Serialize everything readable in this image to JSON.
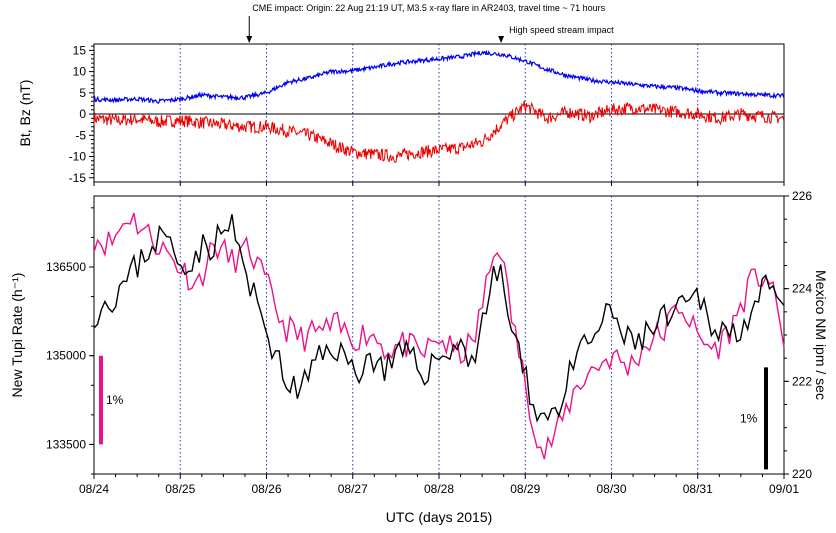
{
  "chart_data": [
    {
      "type": "line",
      "panel": "top",
      "title": "",
      "ylabel": "Bt, Bz (nT)",
      "ylim": [
        -16,
        16.5
      ],
      "yticks": [
        15,
        10,
        5,
        0,
        -5,
        -10,
        -15
      ],
      "ytick_labels": [
        "15",
        "10",
        "5",
        "0",
        "-5",
        "-10",
        "-15"
      ],
      "zero_line": true,
      "day_start": "08/24",
      "xlim_days": [
        0,
        8
      ],
      "colors": {
        "bt": "#0000ee",
        "bz": "#ee0000",
        "grid": "#2233cc"
      },
      "series": [
        {
          "name": "Bt",
          "color": "#0000ee",
          "x": [
            0,
            0.25,
            0.5,
            0.75,
            1.0,
            1.25,
            1.5,
            1.75,
            2.0,
            2.25,
            2.5,
            2.75,
            3.0,
            3.25,
            3.5,
            3.75,
            4.0,
            4.25,
            4.5,
            4.75,
            5.0,
            5.25,
            5.5,
            5.75,
            6.0,
            6.25,
            6.5,
            6.75,
            7.0,
            7.25,
            7.5,
            7.75,
            8.0
          ],
          "values": [
            3.5,
            3.3,
            3.6,
            3.0,
            3.5,
            4.5,
            4.0,
            3.9,
            5.0,
            7.5,
            8.5,
            10.0,
            10.2,
            11.0,
            12.0,
            12.5,
            13.0,
            13.5,
            14.5,
            14.0,
            12.5,
            10.5,
            9.0,
            8.0,
            7.5,
            7.0,
            6.5,
            6.2,
            5.5,
            5.0,
            4.8,
            4.5,
            4.3
          ]
        },
        {
          "name": "Bz",
          "color": "#ee0000",
          "x": [
            0,
            0.25,
            0.5,
            0.75,
            1.0,
            1.25,
            1.5,
            1.75,
            2.0,
            2.25,
            2.5,
            2.75,
            3.0,
            3.25,
            3.5,
            3.75,
            4.0,
            4.25,
            4.5,
            4.75,
            5.0,
            5.25,
            5.5,
            5.75,
            6.0,
            6.25,
            6.5,
            6.75,
            7.0,
            7.25,
            7.5,
            7.75,
            8.0
          ],
          "values": [
            -1.0,
            -1.5,
            -1.2,
            -1.8,
            -1.5,
            -2.0,
            -2.5,
            -3.0,
            -3.0,
            -4.0,
            -5.0,
            -7.0,
            -9.0,
            -9.5,
            -10.0,
            -9.0,
            -8.5,
            -8.0,
            -6.5,
            -2.0,
            2.0,
            -1.0,
            0.5,
            -0.5,
            1.0,
            1.5,
            1.0,
            0.5,
            0.0,
            -1.0,
            0.0,
            -0.5,
            -1.0
          ]
        }
      ],
      "annotations": [
        {
          "text": "CME impact: Origin: 22 Aug 21:19 UT, M3.5 x-ray flare in AR2403, travel time ~ 71 hours",
          "x_day": 1.8
        },
        {
          "text": "High speed stream impact",
          "x_day": 4.72
        }
      ]
    },
    {
      "type": "line",
      "panel": "bottom",
      "title": "",
      "xlabel": "UTC (days 2015)",
      "xtick_labels": [
        "08/24",
        "08/25",
        "08/26",
        "08/27",
        "08/28",
        "08/29",
        "08/30",
        "08/31",
        "09/01"
      ],
      "xlim_days": [
        0,
        8
      ],
      "ylabel_left": "New Tupi Rate (h⁻¹)",
      "ylim_left": [
        133000,
        137700
      ],
      "yticks_left": [
        133500,
        135000,
        136500
      ],
      "ytick_labels_left": [
        "133500",
        "135000",
        "136500"
      ],
      "ylabel_right": "Mexico NM ipm / sec",
      "ylim_right": [
        220,
        226
      ],
      "yticks_right": [
        220,
        222,
        224,
        226
      ],
      "ytick_labels_right": [
        "220",
        "222",
        "224",
        "226"
      ],
      "colors": {
        "tupi": "#ee1188",
        "mexico": "#000000"
      },
      "scale_bars": [
        {
          "label": "1%",
          "axis": "left",
          "from": 133500,
          "to": 135000,
          "color": "#ee1188"
        },
        {
          "label": "1%",
          "axis": "right",
          "from": 220.1,
          "to": 222.3,
          "color": "#000000"
        }
      ],
      "series": [
        {
          "name": "New Tupi Rate",
          "axis": "left",
          "color": "#ee1188",
          "x": [
            0,
            0.2,
            0.4,
            0.6,
            0.8,
            1.0,
            1.2,
            1.4,
            1.6,
            1.8,
            2.0,
            2.2,
            2.4,
            2.6,
            2.8,
            3.0,
            3.2,
            3.4,
            3.6,
            3.8,
            4.0,
            4.2,
            4.4,
            4.6,
            4.7,
            4.8,
            5.0,
            5.2,
            5.4,
            5.6,
            5.8,
            6.0,
            6.2,
            6.4,
            6.6,
            6.8,
            7.0,
            7.2,
            7.4,
            7.6,
            7.8,
            8.0
          ],
          "values": [
            137000,
            136900,
            137400,
            137100,
            136800,
            136500,
            136200,
            136900,
            136600,
            136800,
            136200,
            135500,
            135300,
            135400,
            135500,
            135300,
            135400,
            135100,
            135200,
            135000,
            135300,
            135000,
            135200,
            136500,
            137000,
            136000,
            134500,
            133300,
            133800,
            134500,
            134800,
            135000,
            134800,
            135200,
            135400,
            135900,
            135300,
            135100,
            135500,
            136200,
            136400,
            135300
          ]
        },
        {
          "name": "Mexico NM",
          "axis": "right",
          "color": "#000000",
          "x": [
            0,
            0.2,
            0.4,
            0.6,
            0.8,
            1.0,
            1.2,
            1.4,
            1.6,
            1.8,
            2.0,
            2.2,
            2.4,
            2.6,
            2.8,
            3.0,
            3.2,
            3.4,
            3.6,
            3.8,
            4.0,
            4.2,
            4.4,
            4.6,
            4.7,
            4.8,
            5.0,
            5.2,
            5.4,
            5.6,
            5.8,
            6.0,
            6.2,
            6.4,
            6.6,
            6.8,
            7.0,
            7.2,
            7.4,
            7.6,
            7.8,
            8.0
          ],
          "values": [
            223.5,
            223.8,
            224.2,
            224.8,
            225.2,
            224.5,
            224.8,
            225.0,
            225.4,
            224.0,
            223.2,
            222.0,
            221.8,
            222.5,
            222.8,
            222.2,
            222.5,
            222.3,
            222.6,
            222.2,
            222.5,
            222.8,
            222.5,
            224.0,
            224.5,
            223.5,
            222.0,
            221.2,
            221.5,
            222.5,
            223.0,
            223.5,
            222.8,
            223.0,
            223.3,
            223.5,
            223.8,
            223.2,
            223.0,
            223.5,
            224.0,
            223.4
          ]
        }
      ]
    }
  ]
}
